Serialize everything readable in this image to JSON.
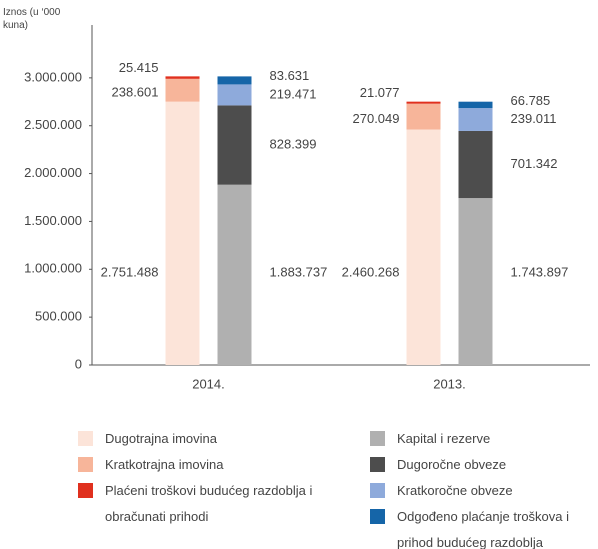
{
  "chart_data": {
    "type": "stacked_bar",
    "ylabel": "Iznos (u ‘000 kuna)",
    "categories": [
      "2014.",
      "2013."
    ],
    "ylim": [
      0,
      3500000
    ],
    "yticks": [
      0,
      {
        "value": 500000,
        "label": "500.000"
      },
      {
        "value": 1000000,
        "label": "1.000.000"
      },
      {
        "value": 1500000,
        "label": "1.500.000"
      },
      {
        "value": 2000000,
        "label": "2.000.000"
      },
      {
        "value": 2500000,
        "label": "2.500.000"
      },
      {
        "value": 3000000,
        "label": "3.000.000"
      }
    ],
    "grid": false,
    "series": [
      {
        "name": "Dugotrajna imovina",
        "color": "#fce4d9",
        "stack": "left",
        "values": [
          2751488,
          2460268
        ],
        "value_labels": [
          "2.751.488",
          "2.460.268"
        ]
      },
      {
        "name": "Kratkotrajna imovina",
        "color": "#f7b59a",
        "stack": "left",
        "values": [
          238601,
          270049
        ],
        "value_labels": [
          "238.601",
          "270.049"
        ]
      },
      {
        "name": "Plaćeni troškovi budućeg razdoblja i obračunati prihodi",
        "color": "#e0301e",
        "stack": "left",
        "values": [
          25415,
          21077
        ],
        "value_labels": [
          "25.415",
          "21.077"
        ]
      },
      {
        "name": "Kapital i rezerve",
        "color": "#b0b0b0",
        "stack": "right",
        "values": [
          1883737,
          1743897
        ],
        "value_labels": [
          "1.883.737",
          "1.743.897"
        ]
      },
      {
        "name": "Dugoročne obveze",
        "color": "#4d4d4d",
        "stack": "right",
        "values": [
          828399,
          701342
        ],
        "value_labels": [
          "828.399",
          "701.342"
        ]
      },
      {
        "name": "Kratkoročne obveze",
        "color": "#8eaadb",
        "stack": "right",
        "values": [
          219471,
          239011
        ],
        "value_labels": [
          "219.471",
          "239.011"
        ]
      },
      {
        "name": "Odgođeno plaćanje troškova i prihod budućeg razdoblja",
        "color": "#1565a8",
        "stack": "right",
        "values": [
          83631,
          66785
        ],
        "value_labels": [
          "83.631",
          "66.785"
        ]
      }
    ]
  }
}
